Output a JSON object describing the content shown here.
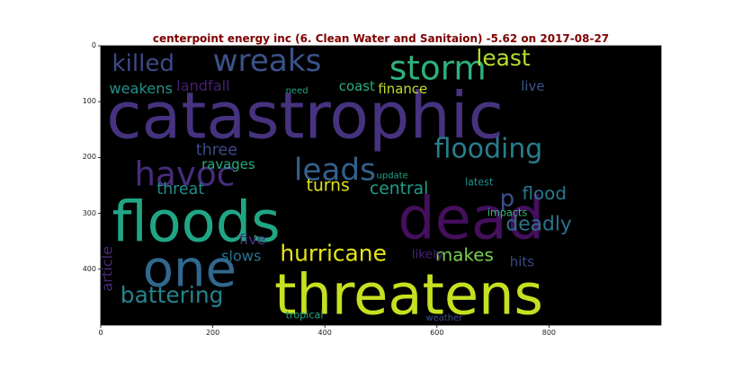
{
  "colors": {
    "title": "#800000",
    "background": "#000000",
    "figure": "#ffffff"
  },
  "chart_data": {
    "type": "wordcloud",
    "title": "centerpoint energy inc (6. Clean Water and Sanitaion) -5.62 on 2017-08-27",
    "xlabel": "",
    "ylabel": "",
    "xlim": [
      0,
      1000
    ],
    "ylim": [
      500,
      0
    ],
    "xticks": [
      0,
      200,
      400,
      600,
      800
    ],
    "yticks": [
      0,
      100,
      200,
      300,
      400
    ],
    "grid": false,
    "words": [
      {
        "text": "catastrophic",
        "x": 10,
        "y": 165,
        "size": 115,
        "color": "#46327e",
        "rotate": false
      },
      {
        "text": "threatens",
        "x": 310,
        "y": 480,
        "size": 100,
        "color": "#c6e020",
        "rotate": false
      },
      {
        "text": "dead",
        "x": 530,
        "y": 345,
        "size": 105,
        "color": "#440f5c",
        "rotate": false
      },
      {
        "text": "floods",
        "x": 20,
        "y": 350,
        "size": 100,
        "color": "#21a685",
        "rotate": false
      },
      {
        "text": "one",
        "x": 75,
        "y": 430,
        "size": 90,
        "color": "#31688e",
        "rotate": false
      },
      {
        "text": "storm",
        "x": 515,
        "y": 60,
        "size": 60,
        "color": "#2db27d",
        "rotate": false
      },
      {
        "text": "havoc",
        "x": 60,
        "y": 250,
        "size": 60,
        "color": "#472d7b",
        "rotate": false
      },
      {
        "text": "wreaks",
        "x": 200,
        "y": 45,
        "size": 55,
        "color": "#3b528b",
        "rotate": false
      },
      {
        "text": "leads",
        "x": 345,
        "y": 240,
        "size": 55,
        "color": "#34618d",
        "rotate": false
      },
      {
        "text": "flooding",
        "x": 595,
        "y": 200,
        "size": 48,
        "color": "#287d8e",
        "rotate": false
      },
      {
        "text": "killed",
        "x": 20,
        "y": 45,
        "size": 42,
        "color": "#3e4989",
        "rotate": false
      },
      {
        "text": "least",
        "x": 670,
        "y": 35,
        "size": 40,
        "color": "#b5de2b",
        "rotate": false
      },
      {
        "text": "hurricane",
        "x": 320,
        "y": 385,
        "size": 40,
        "color": "#e5e419",
        "rotate": false
      },
      {
        "text": "battering",
        "x": 35,
        "y": 460,
        "size": 40,
        "color": "#25838e",
        "rotate": false
      },
      {
        "text": "deadly",
        "x": 723,
        "y": 330,
        "size": 35,
        "color": "#2c728e",
        "rotate": false
      },
      {
        "text": "makes",
        "x": 597,
        "y": 385,
        "size": 32,
        "color": "#7ad151",
        "rotate": false
      },
      {
        "text": "p",
        "x": 712,
        "y": 287,
        "size": 42,
        "color": "#3b528b",
        "rotate": false
      },
      {
        "text": "flood",
        "x": 752,
        "y": 275,
        "size": 32,
        "color": "#2a788e",
        "rotate": false
      },
      {
        "text": "central",
        "x": 480,
        "y": 265,
        "size": 30,
        "color": "#1f9e89",
        "rotate": false
      },
      {
        "text": "turns",
        "x": 367,
        "y": 260,
        "size": 30,
        "color": "#dfe318",
        "rotate": false
      },
      {
        "text": "threat",
        "x": 100,
        "y": 265,
        "size": 28,
        "color": "#228c8d",
        "rotate": false
      },
      {
        "text": "three",
        "x": 170,
        "y": 195,
        "size": 28,
        "color": "#3e4989",
        "rotate": false
      },
      {
        "text": "weakens",
        "x": 15,
        "y": 85,
        "size": 26,
        "color": "#21918c",
        "rotate": false
      },
      {
        "text": "landfall",
        "x": 135,
        "y": 80,
        "size": 26,
        "color": "#481f70",
        "rotate": false
      },
      {
        "text": "coast",
        "x": 425,
        "y": 80,
        "size": 24,
        "color": "#29af7f",
        "rotate": false
      },
      {
        "text": "finance",
        "x": 495,
        "y": 85,
        "size": 24,
        "color": "#c2df23",
        "rotate": false
      },
      {
        "text": "live",
        "x": 750,
        "y": 80,
        "size": 24,
        "color": "#3b528b",
        "rotate": false
      },
      {
        "text": "ravages",
        "x": 180,
        "y": 220,
        "size": 24,
        "color": "#27ad81",
        "rotate": false
      },
      {
        "text": "slows",
        "x": 215,
        "y": 385,
        "size": 26,
        "color": "#2c728e",
        "rotate": false
      },
      {
        "text": "five",
        "x": 247,
        "y": 355,
        "size": 26,
        "color": "#46337f",
        "rotate": false
      },
      {
        "text": "likely",
        "x": 555,
        "y": 380,
        "size": 22,
        "color": "#482576",
        "rotate": false
      },
      {
        "text": "hits",
        "x": 730,
        "y": 395,
        "size": 24,
        "color": "#3f4788",
        "rotate": false
      },
      {
        "text": "impacts",
        "x": 690,
        "y": 305,
        "size": 18,
        "color": "#35b779",
        "rotate": false
      },
      {
        "text": "latest",
        "x": 650,
        "y": 250,
        "size": 18,
        "color": "#21918c",
        "rotate": false
      },
      {
        "text": "update",
        "x": 492,
        "y": 237,
        "size": 16,
        "color": "#1fa187",
        "rotate": false
      },
      {
        "text": "need",
        "x": 330,
        "y": 85,
        "size": 16,
        "color": "#20a486",
        "rotate": false
      },
      {
        "text": "tropical",
        "x": 330,
        "y": 488,
        "size": 18,
        "color": "#22a785",
        "rotate": false
      },
      {
        "text": "weather",
        "x": 580,
        "y": 492,
        "size": 16,
        "color": "#3b528b",
        "rotate": false
      },
      {
        "text": "article",
        "x": 20,
        "y": 440,
        "size": 26,
        "color": "#482878",
        "rotate": true
      }
    ]
  }
}
